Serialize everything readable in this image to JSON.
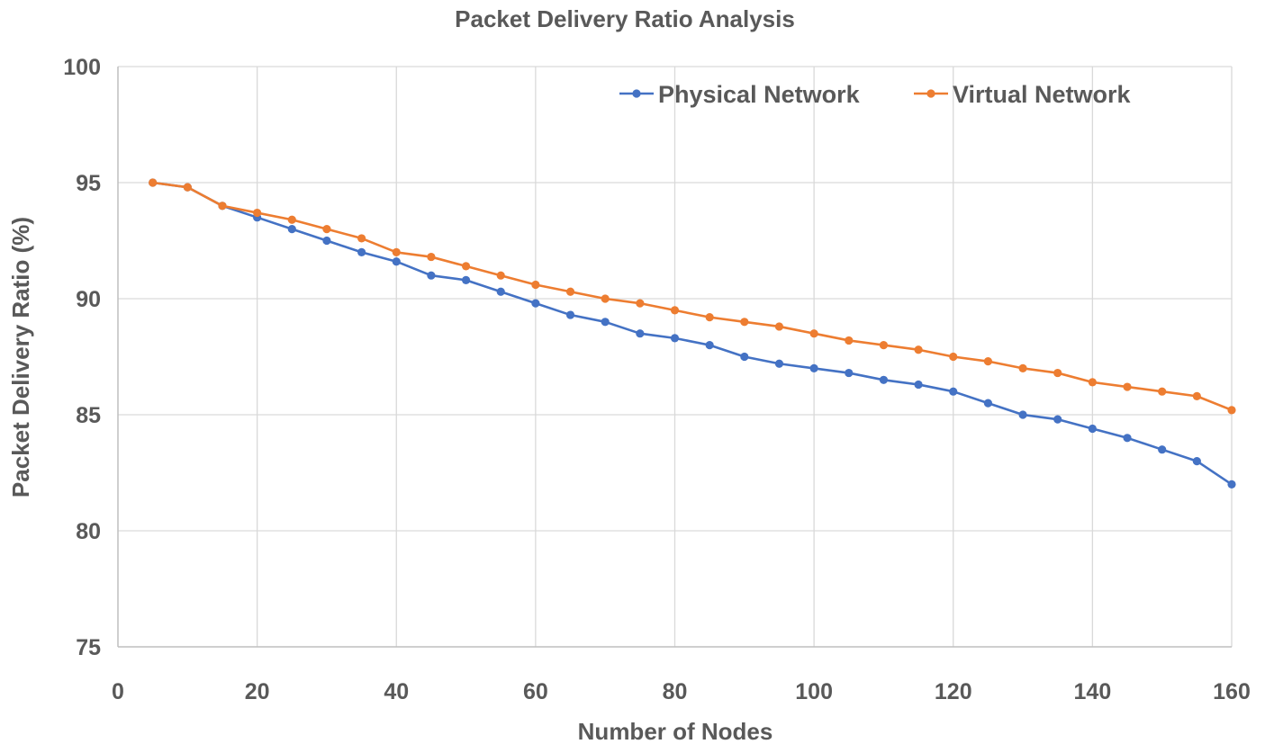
{
  "chart_data": {
    "type": "line",
    "title": "Packet Delivery Ratio Analysis",
    "xlabel": "Number of Nodes",
    "ylabel": "Packet Delivery Ratio (%)",
    "xlim": [
      0,
      160
    ],
    "ylim": [
      75,
      100
    ],
    "xticks": [
      0,
      20,
      40,
      60,
      80,
      100,
      120,
      140,
      160
    ],
    "yticks": [
      75,
      80,
      85,
      90,
      95,
      100
    ],
    "grid": true,
    "legend_position": "top-right",
    "x": [
      5,
      10,
      15,
      20,
      25,
      30,
      35,
      40,
      45,
      50,
      55,
      60,
      65,
      70,
      75,
      80,
      85,
      90,
      95,
      100,
      105,
      110,
      115,
      120,
      125,
      130,
      135,
      140,
      145,
      150,
      155,
      160
    ],
    "series": [
      {
        "name": "Physical Network",
        "color": "#4472c4",
        "values": [
          95.0,
          94.8,
          94.0,
          93.5,
          93.0,
          92.5,
          92.0,
          91.6,
          91.0,
          90.8,
          90.3,
          89.8,
          89.3,
          89.0,
          88.5,
          88.3,
          88.0,
          87.5,
          87.2,
          87.0,
          86.8,
          86.5,
          86.3,
          86.0,
          85.5,
          85.0,
          84.8,
          84.4,
          84.0,
          83.5,
          83.0,
          82.0
        ]
      },
      {
        "name": "Virtual Network",
        "color": "#ed7d31",
        "values": [
          95.0,
          94.8,
          94.0,
          93.7,
          93.4,
          93.0,
          92.6,
          92.0,
          91.8,
          91.4,
          91.0,
          90.6,
          90.3,
          90.0,
          89.8,
          89.5,
          89.2,
          89.0,
          88.8,
          88.5,
          88.2,
          88.0,
          87.8,
          87.5,
          87.3,
          87.0,
          86.8,
          86.4,
          86.2,
          86.0,
          85.8,
          85.2
        ]
      }
    ]
  }
}
